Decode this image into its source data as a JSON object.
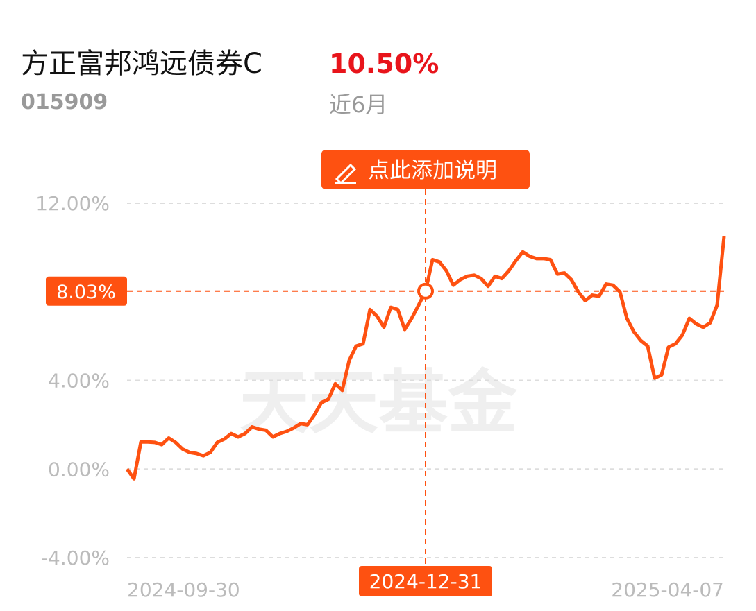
{
  "header": {
    "title": "方正富邦鸿远债券C",
    "code": "015909",
    "return": "10.50%",
    "period": "近6月",
    "note_button": "点此添加说明",
    "watermark": "天天基金"
  },
  "chart_data": {
    "type": "line",
    "categories": [
      "2024-09-30",
      null,
      null,
      null,
      null,
      null,
      null,
      null,
      null,
      null,
      null,
      null,
      null,
      null,
      null,
      null,
      null,
      null,
      null,
      null,
      null,
      null,
      null,
      null,
      null,
      null,
      null,
      null,
      null,
      null,
      null,
      null,
      null,
      null,
      null,
      null,
      null,
      null,
      null,
      null,
      null,
      null,
      null,
      "2024-12-31",
      null,
      null,
      null,
      null,
      null,
      null,
      null,
      null,
      null,
      null,
      null,
      null,
      null,
      null,
      null,
      null,
      null,
      null,
      null,
      null,
      null,
      null,
      null,
      null,
      null,
      null,
      null,
      null,
      null,
      null,
      null,
      null,
      null,
      null,
      null,
      null,
      null,
      null,
      null,
      null,
      null,
      null,
      "2025-04-07"
    ],
    "series": [
      {
        "color": "#fe5111",
        "values": [
          0.0,
          -0.44,
          1.22,
          1.22,
          1.2,
          1.1,
          1.4,
          1.2,
          0.9,
          0.75,
          0.7,
          0.6,
          0.75,
          1.2,
          1.35,
          1.6,
          1.45,
          1.6,
          1.9,
          1.8,
          1.75,
          1.45,
          1.6,
          1.7,
          1.85,
          2.05,
          2.0,
          2.45,
          3.0,
          3.15,
          3.85,
          3.55,
          4.9,
          5.55,
          5.65,
          7.2,
          6.9,
          6.4,
          7.3,
          7.2,
          6.3,
          6.8,
          7.4,
          8.03,
          9.45,
          9.35,
          8.95,
          8.3,
          8.55,
          8.7,
          8.75,
          8.6,
          8.25,
          8.7,
          8.6,
          8.95,
          9.4,
          9.8,
          9.6,
          9.5,
          9.5,
          9.45,
          8.8,
          8.85,
          8.55,
          8.0,
          7.6,
          7.85,
          7.8,
          8.35,
          8.3,
          8.0,
          6.8,
          6.2,
          5.8,
          5.55,
          4.1,
          4.25,
          5.5,
          5.65,
          6.05,
          6.8,
          6.55,
          6.4,
          6.6,
          7.4,
          10.5
        ]
      }
    ],
    "cursor": {
      "value": 8.03,
      "label": "8.03%"
    },
    "ylim": [
      -4,
      12
    ],
    "yticks": [
      {
        "value": 12,
        "label": "12.00%"
      },
      {
        "value": 4,
        "label": "4.00%"
      },
      {
        "value": 0,
        "label": "0.00%"
      },
      {
        "value": -4,
        "label": "-4.00%"
      }
    ],
    "grid": true
  }
}
